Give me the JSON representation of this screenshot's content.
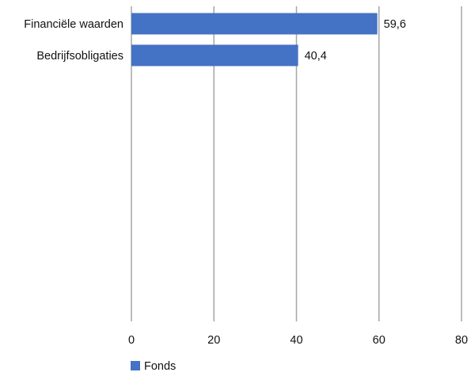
{
  "chart_data": {
    "type": "bar",
    "orientation": "horizontal",
    "categories": [
      "Financiële waarden",
      "Bedrijfsobligaties"
    ],
    "series": [
      {
        "name": "Fonds",
        "values": [
          59.6,
          40.4
        ],
        "labels": [
          "59,6",
          "40,4"
        ],
        "color": "#4472C4"
      }
    ],
    "xlim": [
      0,
      80
    ],
    "xticks": [
      0,
      20,
      40,
      60,
      80
    ],
    "grid": true,
    "legend_position": "bottom-left"
  },
  "colors": {
    "bar": "#4472C4",
    "grid": "#a6a6a6"
  }
}
